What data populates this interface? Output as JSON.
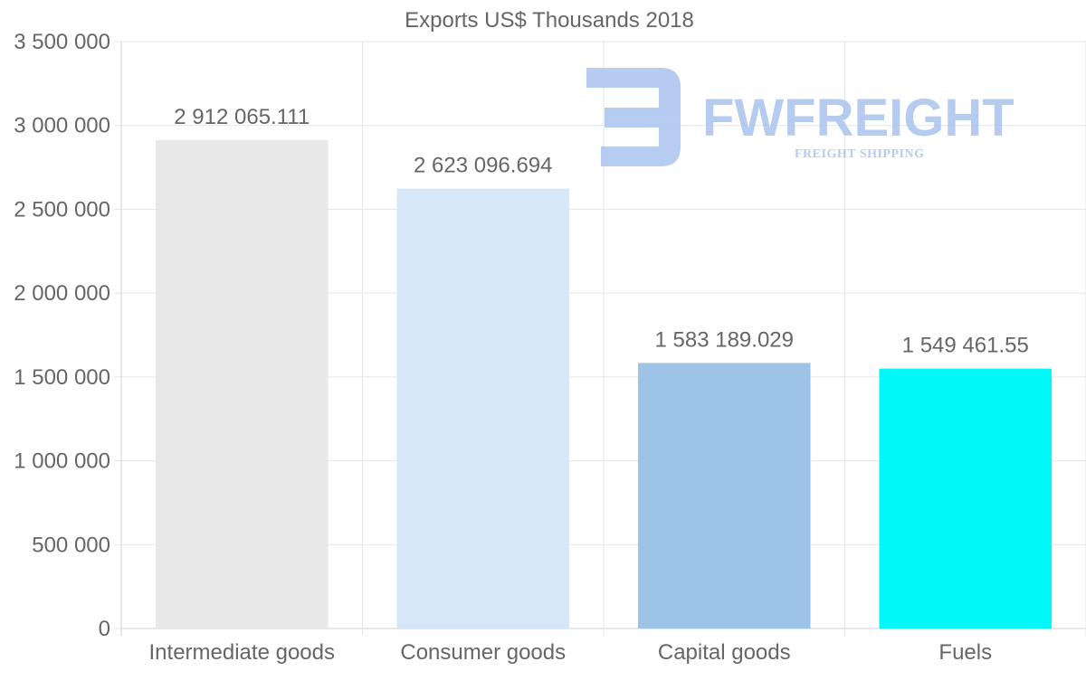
{
  "chart_data": {
    "type": "bar",
    "title": "Exports US$ Thousands 2018",
    "categories": [
      "Intermediate goods",
      "Consumer goods",
      "Capital goods",
      "Fuels"
    ],
    "values": [
      2912065.111,
      2623096.694,
      1583189.029,
      1549461.55
    ],
    "value_labels": [
      "2 912 065.111",
      "2 623 096.694",
      "1 583 189.029",
      "1 549 461.55"
    ],
    "colors": [
      "#e8e8e8",
      "#d6e7f8",
      "#9dc4e6",
      "#00f8f8"
    ],
    "ylim": [
      0,
      3500000
    ],
    "yticks": [
      0,
      500000,
      1000000,
      1500000,
      2000000,
      2500000,
      3000000,
      3500000
    ],
    "ytick_labels": [
      "0",
      "500 000",
      "1 000 000",
      "1 500 000",
      "2 000 000",
      "2 500 000",
      "3 000 000",
      "3 500 000"
    ],
    "xlabel": "",
    "ylabel": "",
    "grid": true
  },
  "watermark": {
    "brand": "FWFREIGHT",
    "tagline": "FREIGHT SHIPPING"
  }
}
